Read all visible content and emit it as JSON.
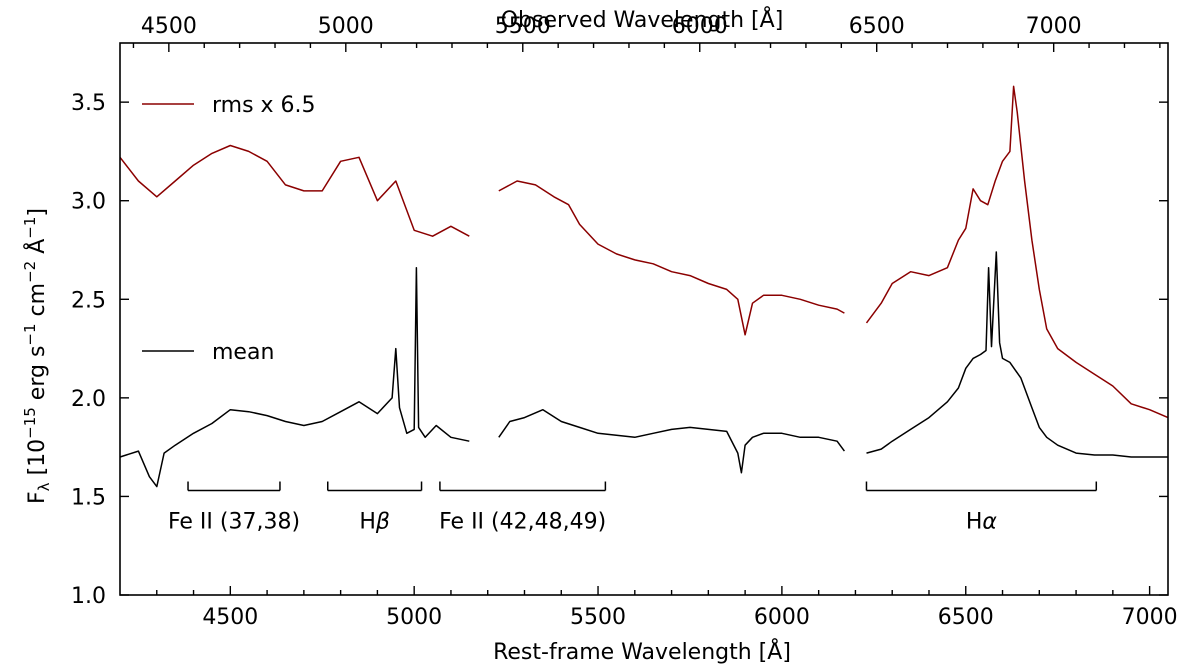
{
  "chart_data": {
    "type": "line",
    "xlabel": "Rest-frame Wavelength [Å]",
    "ylabel": "F_λ [10^-15 erg s^-1 cm^-2 Å^-1]",
    "ylabel_parts": {
      "f": "F",
      "lambda_sub": "λ",
      "bracket_open": " [10",
      "exp15": "−15",
      "erg_s": " erg s",
      "exp1": "−1",
      "cm": " cm",
      "exp2": "−2",
      "angstrom": " Å",
      "expm1": "−1",
      "bracket_close": "]"
    },
    "x2label": "Observed Wavelength [Å]",
    "xlim": [
      4200,
      7050
    ],
    "ylim": [
      1.0,
      3.8
    ],
    "x2lim": [
      4362,
      7323
    ],
    "xticks": [
      4500,
      5000,
      5500,
      6000,
      6500,
      7000
    ],
    "xticklabels": [
      "4500",
      "5000",
      "5500",
      "6000",
      "6500",
      "7000"
    ],
    "x2ticks": [
      4500,
      5000,
      5500,
      6000,
      6500,
      7000
    ],
    "x2ticklabels": [
      "4500",
      "5000",
      "5500",
      "6000",
      "6500",
      "7000"
    ],
    "yticks": [
      1.0,
      1.5,
      2.0,
      2.5,
      3.0,
      3.5
    ],
    "yticklabels": [
      "1.0",
      "1.5",
      "2.0",
      "2.5",
      "3.0",
      "3.5"
    ],
    "legend": [
      {
        "name": "rms x 6.5",
        "color": "#8b0000"
      },
      {
        "name": "mean",
        "color": "#000000"
      }
    ],
    "series": [
      {
        "name": "rms x 6.5",
        "color": "#8b0000",
        "segments": [
          {
            "x": [
              4200,
              4250,
              4300,
              4350,
              4400,
              4450,
              4500,
              4550,
              4600,
              4650,
              4700,
              4750,
              4800,
              4850,
              4900,
              4950,
              5000,
              5050,
              5100,
              5150
            ],
            "y": [
              3.22,
              3.1,
              3.02,
              3.1,
              3.18,
              3.24,
              3.28,
              3.25,
              3.2,
              3.08,
              3.05,
              3.05,
              3.2,
              3.22,
              3.0,
              3.1,
              2.85,
              2.82,
              2.87,
              2.82
            ]
          },
          {
            "x": [
              5230,
              5280,
              5330,
              5380,
              5420,
              5450,
              5500,
              5550,
              5600,
              5650,
              5700,
              5750,
              5800,
              5850,
              5880,
              5900,
              5920,
              5950,
              6000,
              6050,
              6100,
              6150,
              6170
            ],
            "y": [
              3.05,
              3.1,
              3.08,
              3.02,
              2.98,
              2.88,
              2.78,
              2.73,
              2.7,
              2.68,
              2.64,
              2.62,
              2.58,
              2.55,
              2.5,
              2.32,
              2.48,
              2.52,
              2.52,
              2.5,
              2.47,
              2.45,
              2.43
            ]
          },
          {
            "x": [
              6230,
              6270,
              6300,
              6350,
              6400,
              6450,
              6480,
              6500,
              6520,
              6540,
              6560,
              6580,
              6600,
              6620,
              6630,
              6640,
              6660,
              6680,
              6700,
              6720,
              6750,
              6800,
              6850,
              6900,
              6950,
              7000,
              7050
            ],
            "y": [
              2.38,
              2.48,
              2.58,
              2.64,
              2.62,
              2.66,
              2.8,
              2.86,
              3.06,
              3.0,
              2.98,
              3.1,
              3.2,
              3.25,
              3.58,
              3.45,
              3.1,
              2.8,
              2.55,
              2.35,
              2.25,
              2.18,
              2.12,
              2.06,
              1.97,
              1.94,
              1.9
            ]
          }
        ]
      },
      {
        "name": "mean",
        "color": "#000000",
        "segments": [
          {
            "x": [
              4200,
              4250,
              4280,
              4300,
              4320,
              4350,
              4400,
              4450,
              4500,
              4550,
              4600,
              4650,
              4700,
              4750,
              4800,
              4850,
              4900,
              4940,
              4950,
              4960,
              4980,
              5000,
              5006,
              5012,
              5030,
              5060,
              5100,
              5150
            ],
            "y": [
              1.7,
              1.73,
              1.6,
              1.55,
              1.72,
              1.76,
              1.82,
              1.87,
              1.94,
              1.93,
              1.91,
              1.88,
              1.86,
              1.88,
              1.93,
              1.98,
              1.92,
              2.0,
              2.25,
              1.95,
              1.82,
              1.84,
              2.66,
              1.85,
              1.8,
              1.86,
              1.8,
              1.78
            ]
          },
          {
            "x": [
              5230,
              5260,
              5300,
              5350,
              5400,
              5450,
              5500,
              5550,
              5600,
              5650,
              5700,
              5750,
              5800,
              5850,
              5880,
              5890,
              5900,
              5920,
              5950,
              6000,
              6050,
              6100,
              6150,
              6170
            ],
            "y": [
              1.8,
              1.88,
              1.9,
              1.94,
              1.88,
              1.85,
              1.82,
              1.81,
              1.8,
              1.82,
              1.84,
              1.85,
              1.84,
              1.83,
              1.72,
              1.62,
              1.76,
              1.8,
              1.82,
              1.82,
              1.8,
              1.8,
              1.78,
              1.73
            ]
          },
          {
            "x": [
              6230,
              6270,
              6300,
              6350,
              6400,
              6450,
              6480,
              6500,
              6520,
              6540,
              6555,
              6562,
              6570,
              6583,
              6592,
              6600,
              6620,
              6650,
              6680,
              6700,
              6720,
              6750,
              6800,
              6850,
              6900,
              6950,
              7000,
              7050
            ],
            "y": [
              1.72,
              1.74,
              1.78,
              1.84,
              1.9,
              1.98,
              2.05,
              2.15,
              2.2,
              2.22,
              2.24,
              2.66,
              2.26,
              2.74,
              2.28,
              2.2,
              2.18,
              2.1,
              1.95,
              1.85,
              1.8,
              1.76,
              1.72,
              1.71,
              1.71,
              1.7,
              1.7,
              1.7
            ]
          }
        ]
      }
    ],
    "annotations": [
      {
        "label": "Fe II (37,38)",
        "x_start": 4385,
        "x_end": 4635,
        "y": 1.53
      },
      {
        "label": "H",
        "greek": "β",
        "x_start": 4765,
        "x_end": 5020,
        "y": 1.53
      },
      {
        "label": "Fe II (42,48,49)",
        "x_start": 5070,
        "x_end": 5520,
        "y": 1.53
      },
      {
        "label": "H",
        "greek": "α",
        "x_start": 6230,
        "x_end": 6855,
        "y": 1.53
      }
    ]
  }
}
